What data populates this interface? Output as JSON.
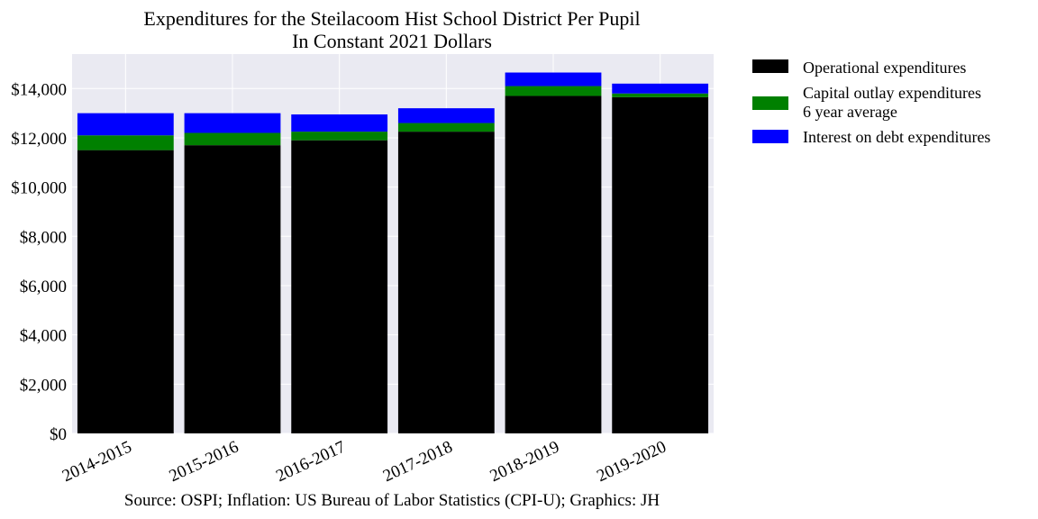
{
  "chart_data": {
    "type": "bar",
    "stacked": true,
    "title": "Expenditures for the Steilacoom Hist School District Per Pupil",
    "subtitle": "In Constant 2021 Dollars",
    "source": "Source: OSPI; Inflation: US Bureau of Labor Statistics (CPI-U); Graphics: JH",
    "categories": [
      "2014-2015",
      "2015-2016",
      "2016-2017",
      "2017-2018",
      "2018-2019",
      "2019-2020"
    ],
    "series": [
      {
        "name": "Operational expenditures",
        "color": "#000000",
        "values": [
          11500,
          11700,
          11900,
          12250,
          13700,
          13650
        ]
      },
      {
        "name": "Capital outlay expenditures",
        "name_line2": "6 year average",
        "color": "#008000",
        "values": [
          600,
          500,
          350,
          350,
          400,
          150
        ]
      },
      {
        "name": "Interest on debt expenditures",
        "color": "#0000ff",
        "values": [
          900,
          800,
          700,
          600,
          550,
          400
        ]
      }
    ],
    "ylim": [
      0,
      15400
    ],
    "yticks": [
      0,
      2000,
      4000,
      6000,
      8000,
      10000,
      12000,
      14000
    ],
    "ytick_labels": [
      "$0",
      "$2,000",
      "$4,000",
      "$6,000",
      "$8,000",
      "$10,000",
      "$12,000",
      "$14,000"
    ],
    "grid": true,
    "background_color": "#eaeaf2",
    "legend_position": "outside right, top"
  }
}
